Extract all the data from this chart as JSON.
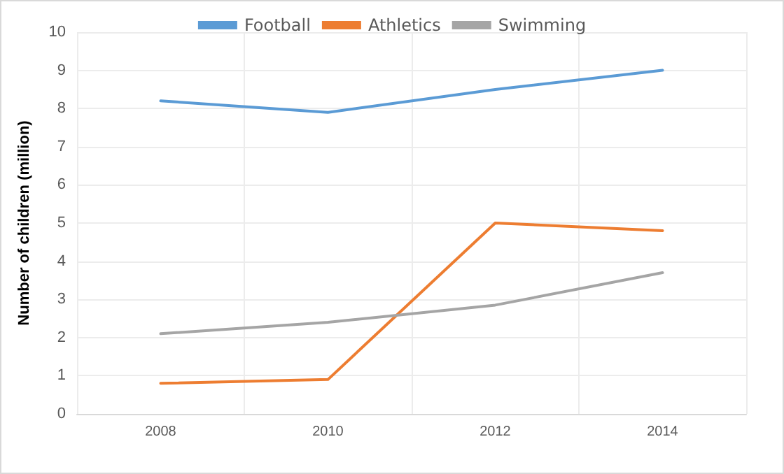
{
  "chart_data": {
    "type": "line",
    "ylabel": "Number of children (million)",
    "categories": [
      "2008",
      "2010",
      "2012",
      "2014"
    ],
    "series": [
      {
        "name": "Football",
        "color": "#5b9bd5",
        "values": [
          8.2,
          7.9,
          8.5,
          9.0
        ]
      },
      {
        "name": "Athletics",
        "color": "#ed7d31",
        "values": [
          0.8,
          0.9,
          5.0,
          4.8
        ]
      },
      {
        "name": "Swimming",
        "color": "#a5a5a5",
        "values": [
          2.1,
          2.4,
          2.85,
          3.7
        ]
      }
    ],
    "ylim": [
      0,
      10
    ],
    "yticks": [
      0,
      1,
      2,
      3,
      4,
      5,
      6,
      7,
      8,
      9,
      10
    ],
    "grid": true,
    "legend": "top",
    "marker": "none",
    "line_style": "solid"
  }
}
